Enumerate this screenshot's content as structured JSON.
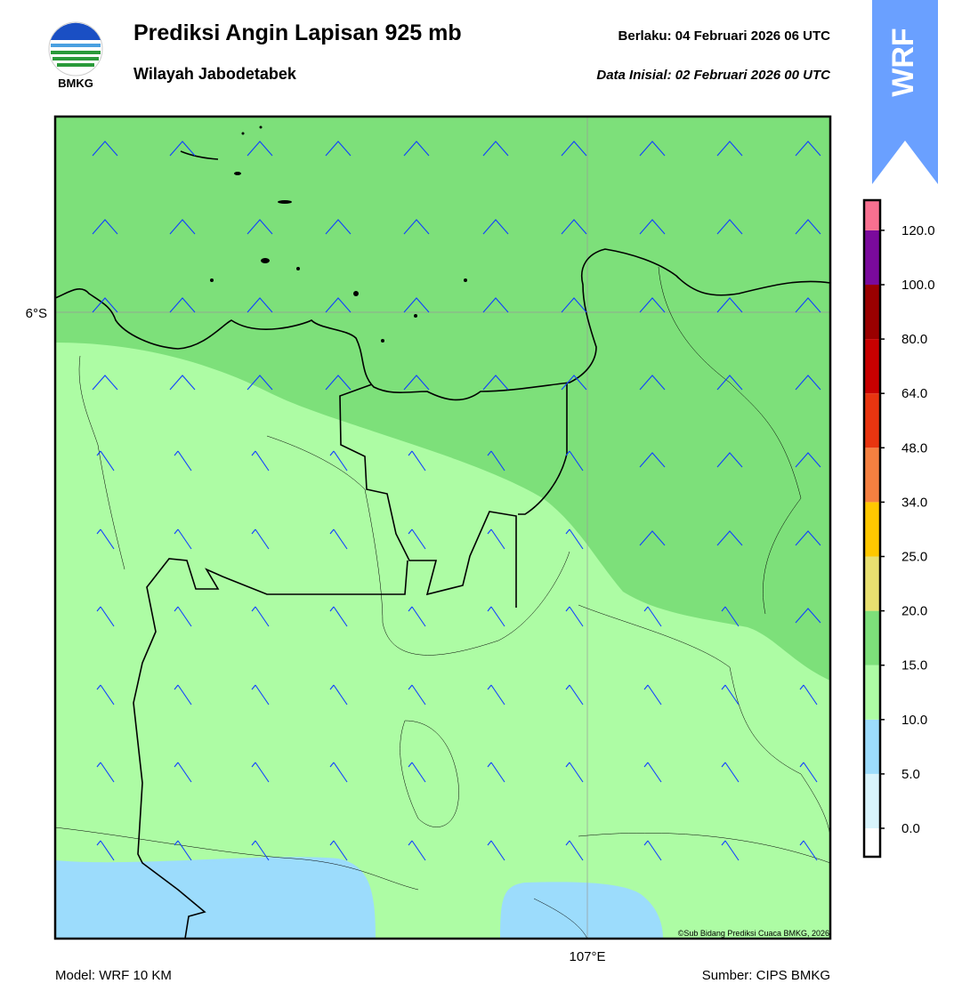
{
  "header": {
    "logo_text": "BMKG",
    "title": "Prediksi Angin Lapisan 925 mb",
    "subtitle": "Wilayah Jabodetabek",
    "valid": "Berlaku:  04 Februari 2026 06 UTC",
    "initial": "Data Inisial:  02 Februari 2026 00 UTC"
  },
  "badge": "WRF",
  "map": {
    "lat_label": "6°S",
    "lon_label": "107°E",
    "copyright": "©Sub Bidang Prediksi Cuaca BMKG, 2026"
  },
  "colorbar": {
    "ticks": [
      {
        "value": 0,
        "label": "0.0"
      },
      {
        "value": 5,
        "label": "5.0"
      },
      {
        "value": 10,
        "label": "10.0"
      },
      {
        "value": 15,
        "label": "15.0"
      },
      {
        "value": 20,
        "label": "20.0"
      },
      {
        "value": 25,
        "label": "25.0"
      },
      {
        "value": 34,
        "label": "34.0"
      },
      {
        "value": 48,
        "label": "48.0"
      },
      {
        "value": 64,
        "label": "64.0"
      },
      {
        "value": 80,
        "label": "80.0"
      },
      {
        "value": 100,
        "label": "100.0"
      },
      {
        "value": 120,
        "label": "120.0"
      }
    ],
    "colors": [
      "#ffffff",
      "#d8f4fc",
      "#9cdcfc",
      "#adfca4",
      "#7de07a",
      "#e8e070",
      "#ffc800",
      "#f58040",
      "#e83510",
      "#c80000",
      "#9a0000",
      "#7a0a9c",
      "#f87090"
    ]
  },
  "footer": {
    "model": "Model: WRF 10 KM",
    "source": "Sumber: CIPS BMKG"
  }
}
